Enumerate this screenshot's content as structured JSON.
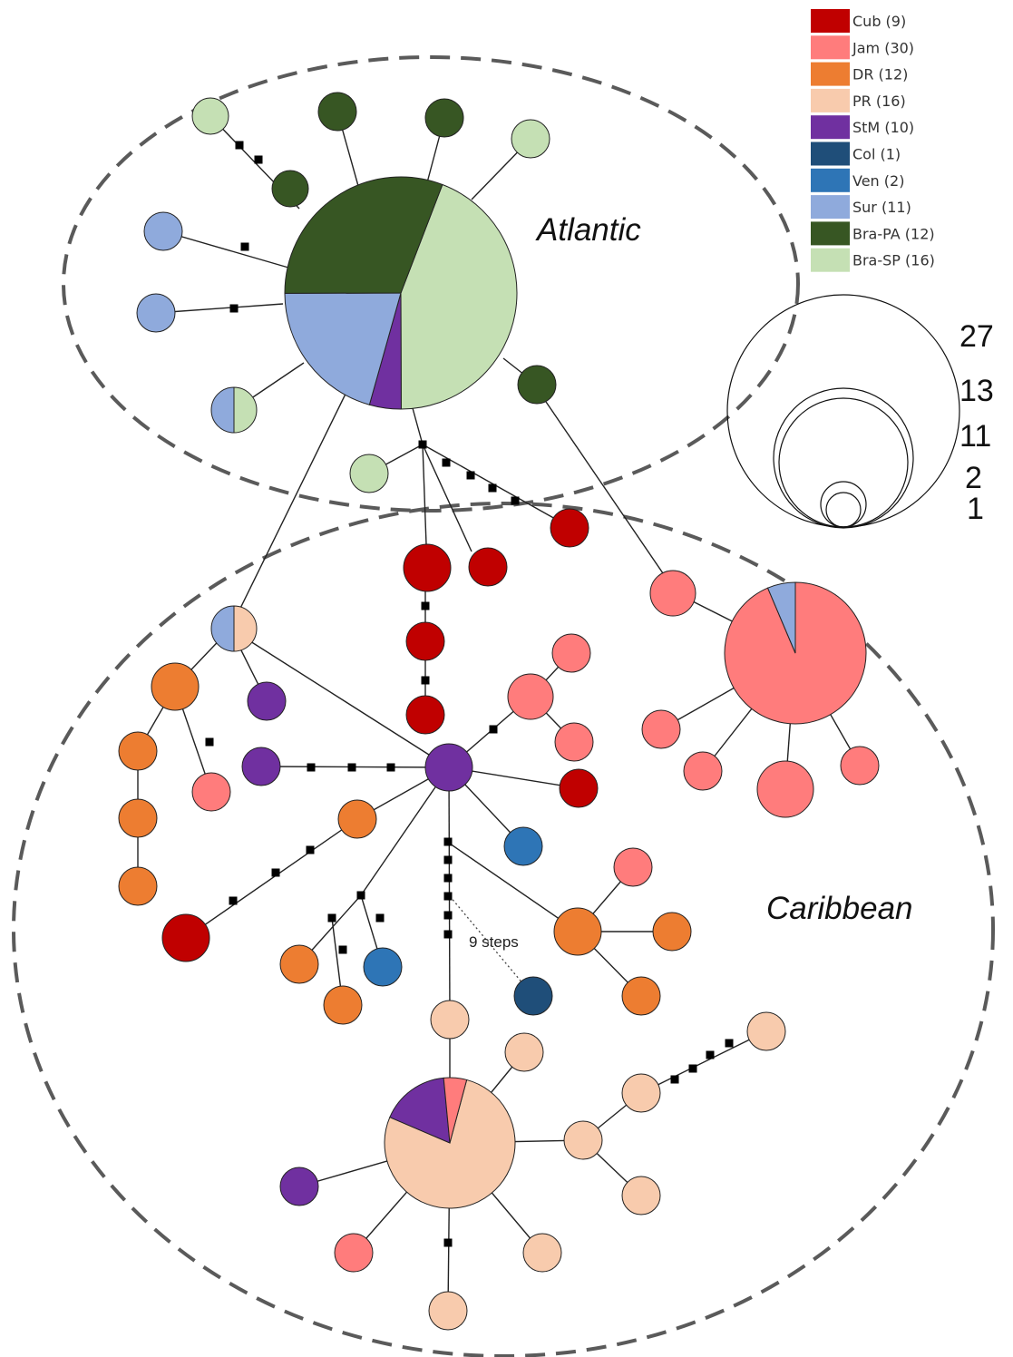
{
  "regions": {
    "atlantic": "Atlantic",
    "caribbean": "Caribbean"
  },
  "annotation": {
    "steps": "9 steps"
  },
  "legend": [
    {
      "label": "Cub (9)",
      "color": "#c00000"
    },
    {
      "label": "Jam (30)",
      "color": "#ff7c7c"
    },
    {
      "label": "DR (12)",
      "color": "#ed7d31"
    },
    {
      "label": "PR (16)",
      "color": "#f8cbad"
    },
    {
      "label": "StM (10)",
      "color": "#7030a0"
    },
    {
      "label": "Col (1)",
      "color": "#1f4e79"
    },
    {
      "label": "Ven (2)",
      "color": "#2e75b6"
    },
    {
      "label": "Sur (11)",
      "color": "#8faadc"
    },
    {
      "label": "Bra-PA (12)",
      "color": "#375623"
    },
    {
      "label": "Bra-SP (16)",
      "color": "#c5e0b4"
    }
  ],
  "size_scale": [
    "27",
    "13",
    "11",
    "2",
    "1"
  ]
}
